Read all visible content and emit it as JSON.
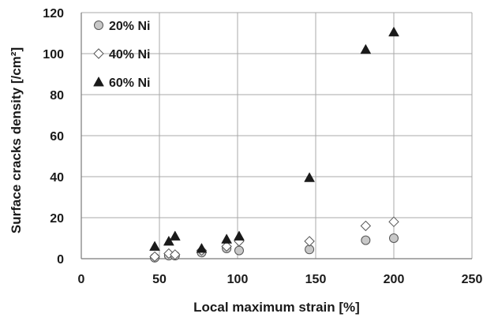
{
  "chart_data": {
    "type": "scatter",
    "xlabel": "Local maximum strain [%]",
    "ylabel": "Surface cracks density  [/cm²]",
    "xlim": [
      0,
      250
    ],
    "ylim": [
      0,
      120
    ],
    "xticks": [
      0,
      50,
      100,
      150,
      200,
      250
    ],
    "yticks": [
      0,
      20,
      40,
      60,
      80,
      100,
      120
    ],
    "grid": true,
    "legend_position": "top-left",
    "series": [
      {
        "name": "20% Ni",
        "marker": "circle",
        "color": "#c8c8c8",
        "x": [
          47,
          56,
          60,
          77,
          93,
          101,
          146,
          182,
          200
        ],
        "y": [
          0.5,
          1.5,
          1.5,
          3,
          5,
          4,
          4.5,
          9,
          10
        ]
      },
      {
        "name": "40% Ni",
        "marker": "diamond",
        "color": "#ffffff",
        "x": [
          47,
          56,
          60,
          77,
          93,
          101,
          146,
          182,
          200
        ],
        "y": [
          1,
          2.5,
          2,
          4,
          6,
          8.5,
          8.5,
          16,
          18
        ]
      },
      {
        "name": "60% Ni",
        "marker": "triangle",
        "color": "#1a1a1a",
        "x": [
          47,
          56,
          60,
          77,
          93,
          101,
          146,
          182,
          200
        ],
        "y": [
          6,
          8.5,
          11,
          5,
          9.5,
          11,
          39.5,
          102,
          110.5
        ]
      }
    ]
  }
}
